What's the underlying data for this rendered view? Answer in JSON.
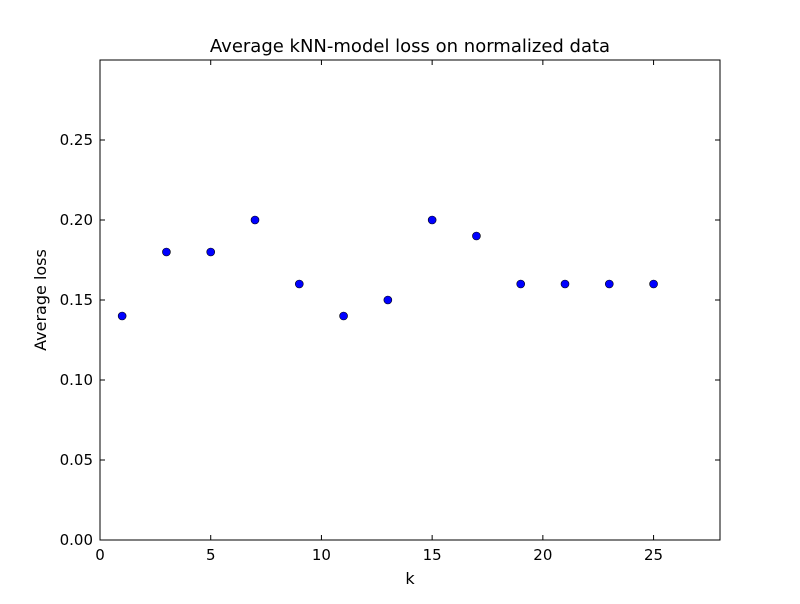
{
  "chart_data": {
    "type": "scatter",
    "title": "Average kNN-model loss on normalized data",
    "xlabel": "k",
    "ylabel": "Average loss",
    "xlim": [
      0,
      28
    ],
    "ylim": [
      0,
      0.3
    ],
    "xticks": [
      0,
      5,
      10,
      15,
      20,
      25
    ],
    "xtick_labels": [
      "0",
      "5",
      "10",
      "15",
      "20",
      "25"
    ],
    "yticks": [
      0,
      0.05,
      0.1,
      0.15,
      0.2,
      0.25
    ],
    "ytick_labels": [
      "0.00",
      "0.05",
      "0.10",
      "0.15",
      "0.20",
      "0.25"
    ],
    "grid": false,
    "marker_color": "#0000ff",
    "series": [
      {
        "x": [
          1,
          3,
          5,
          7,
          9,
          11,
          13,
          15,
          17,
          19,
          21,
          23,
          25
        ],
        "y": [
          0.14,
          0.18,
          0.18,
          0.2,
          0.16,
          0.14,
          0.15,
          0.2,
          0.19,
          0.16,
          0.16,
          0.16,
          0.16
        ]
      }
    ]
  }
}
